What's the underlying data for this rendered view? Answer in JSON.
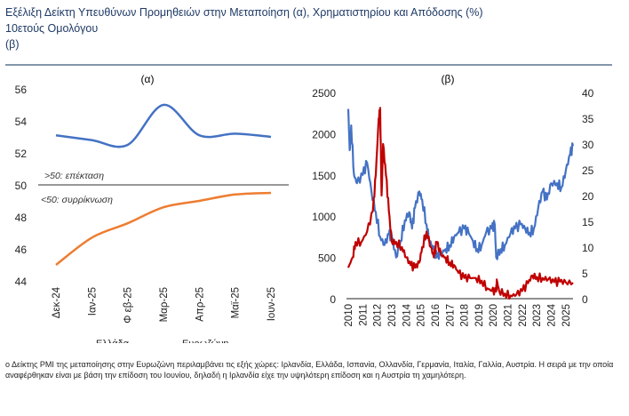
{
  "title": {
    "line1": "Εξέλιξη Δείκτη Υπευθύνων Προμηθειών στην Μεταποίηση (α), Χρηματιστηρίου και Απόδοσης (%)",
    "line2": "10ετούς Ομολόγου",
    "line3": "(β)"
  },
  "colors": {
    "title": "#1f3a66",
    "blue": "#4472c4",
    "orange": "#ed7d31",
    "red": "#c00000"
  },
  "chart_data": [
    {
      "type": "line",
      "title": "(α)",
      "categories": [
        "Δεκ-24",
        "Ιαν-25",
        "Φεβ-25",
        "Μαρ-25",
        "Απρ-25",
        "Μαϊ-25",
        "Ιουν-25"
      ],
      "category_labels": [
        "Δεκ-24",
        "Ιαν-25",
        "Φ εβ-25",
        "Μαρ-25",
        "Απρ-25",
        "Μαϊ-25",
        "Ιουν-25"
      ],
      "series": [
        {
          "name": "Ελλάδα",
          "color": "#4472c4",
          "values": [
            53.1,
            52.8,
            52.5,
            55.0,
            53.1,
            53.2,
            53.0
          ]
        },
        {
          "name": "Ευρωζώνη",
          "color": "#ed7d31",
          "values": [
            45.0,
            46.7,
            47.6,
            48.6,
            49.0,
            49.4,
            49.5
          ]
        }
      ],
      "ylim": [
        44,
        56
      ],
      "yticks": [
        "44",
        "46",
        "48",
        "50",
        "52",
        "54",
        "56"
      ],
      "reference_line": 50,
      "annotations": {
        "above": ">50: επέκταση",
        "below": "<50: συρρίκνωση"
      },
      "grid": false
    },
    {
      "type": "line",
      "title": "(β)",
      "xlim": [
        2010,
        2025.5
      ],
      "xticks": [
        "2010",
        "2011",
        "2012",
        "2013",
        "2014",
        "2015",
        "2016",
        "2017",
        "2018",
        "2019",
        "2020",
        "2021",
        "2022",
        "2023",
        "2024",
        "2025"
      ],
      "ylim_left": [
        0,
        2500
      ],
      "yticks_left": [
        "0",
        "500",
        "1000",
        "1500",
        "2000",
        "2500"
      ],
      "ylim_right": [
        0,
        40
      ],
      "yticks_right": [
        "0",
        "5",
        "10",
        "15",
        "20",
        "25",
        "30",
        "35",
        "40"
      ],
      "series": [
        {
          "axis": "left",
          "color": "#4472c4",
          "x": [
            2010.0,
            2010.1,
            2010.2,
            2010.4,
            2010.6,
            2011.0,
            2011.3,
            2011.6,
            2011.9,
            2012.2,
            2012.5,
            2012.8,
            2013.0,
            2013.3,
            2013.6,
            2013.9,
            2014.2,
            2014.4,
            2014.6,
            2014.9,
            2015.1,
            2015.4,
            2015.6,
            2015.9,
            2016.1,
            2016.4,
            2016.7,
            2017.0,
            2017.3,
            2017.6,
            2018.0,
            2018.3,
            2018.6,
            2018.9,
            2019.2,
            2019.5,
            2019.9,
            2020.1,
            2020.2,
            2020.5,
            2020.8,
            2021.2,
            2021.5,
            2021.9,
            2022.2,
            2022.5,
            2022.8,
            2023.1,
            2023.4,
            2023.7,
            2024.0,
            2024.4,
            2024.7,
            2025.0,
            2025.3,
            2025.5
          ],
          "y": [
            2300,
            1800,
            2100,
            1500,
            1400,
            1500,
            1650,
            1300,
            1050,
            750,
            650,
            780,
            750,
            500,
            700,
            950,
            1050,
            850,
            1100,
            1300,
            1200,
            900,
            700,
            600,
            500,
            550,
            600,
            650,
            750,
            800,
            850,
            800,
            700,
            600,
            650,
            800,
            850,
            900,
            500,
            600,
            650,
            800,
            850,
            900,
            850,
            800,
            850,
            1100,
            1300,
            1200,
            1400,
            1400,
            1350,
            1550,
            1750,
            1850
          ]
        },
        {
          "axis": "right",
          "color": "#c00000",
          "x": [
            2010.0,
            2010.3,
            2010.5,
            2010.9,
            2011.3,
            2011.7,
            2011.9,
            2012.1,
            2012.2,
            2012.3,
            2012.4,
            2012.6,
            2012.8,
            2013.0,
            2013.3,
            2013.7,
            2014.0,
            2014.3,
            2014.6,
            2014.9,
            2015.1,
            2015.4,
            2015.7,
            2015.9,
            2016.1,
            2016.4,
            2016.7,
            2017.0,
            2017.3,
            2017.6,
            2018.0,
            2018.4,
            2018.8,
            2019.2,
            2019.6,
            2019.9,
            2020.2,
            2020.25,
            2020.4,
            2020.8,
            2021.2,
            2021.6,
            2022.0,
            2022.4,
            2022.7,
            2023.0,
            2023.4,
            2023.8,
            2024.2,
            2024.6,
            2025.0,
            2025.5
          ],
          "y": [
            6,
            8,
            11,
            11,
            13,
            17,
            24,
            35,
            37,
            20,
            30,
            24,
            17,
            11,
            11,
            10,
            8,
            6.5,
            6,
            7,
            10,
            13,
            10,
            8,
            11,
            8.5,
            8,
            7,
            6.5,
            5,
            4,
            4,
            4,
            3.5,
            2,
            1.5,
            1.4,
            3.5,
            1.5,
            1,
            0.6,
            0.8,
            1.5,
            3,
            4.5,
            4.2,
            4,
            3.8,
            3.2,
            3.3,
            3.2,
            3.1
          ]
        }
      ],
      "grid": false
    }
  ],
  "legend_a": [
    "Ελλάδα",
    "Ευρωζώνη"
  ],
  "footnote": "ο Δείκτης PMI της μεταποίησης στην Ευρωζώνη περιλαμβάνει τις εξής χώρες: Ιρλανδία, Ελλάδα, Ισπανία, Ολλανδία, Γερμανία, Ιταλία, Γαλλία, Αυστρία. Η σειρά με την οποία αναφέρθηκαν είναι με βάση την επίδοση του Ιουνίου, δηλαδή η Ιρλανδία είχε την υψηλότερη επίδοση και η Αυστρία τη χαμηλότερη."
}
